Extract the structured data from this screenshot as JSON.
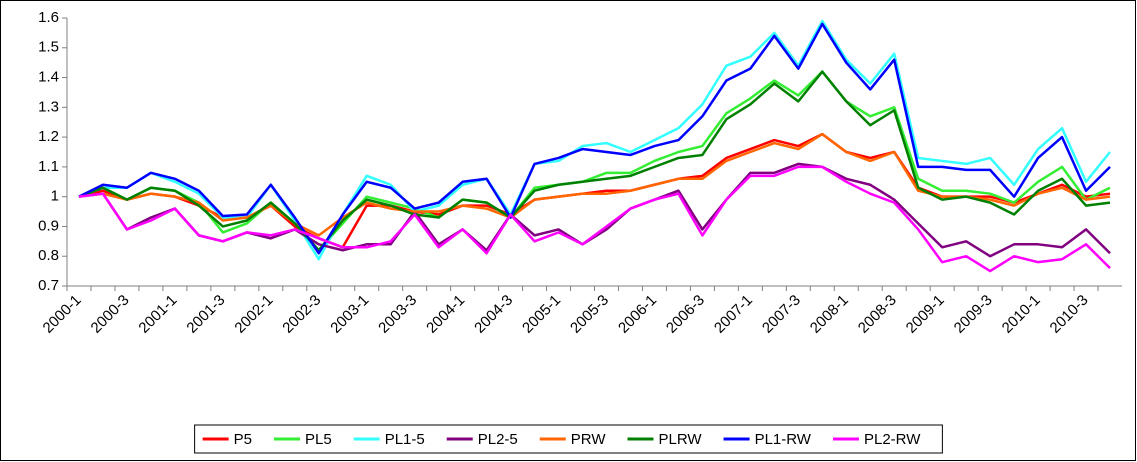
{
  "chart_data": {
    "type": "line",
    "categories": [
      "2000-1",
      null,
      "2000-3",
      null,
      "2001-1",
      null,
      "2001-3",
      null,
      "2002-1",
      null,
      "2002-3",
      null,
      "2003-1",
      null,
      "2003-3",
      null,
      "2004-1",
      null,
      "2004-3",
      null,
      "2005-1",
      null,
      "2005-3",
      null,
      "2006-1",
      null,
      "2006-3",
      null,
      "2007-1",
      null,
      "2007-3",
      null,
      "2008-1",
      null,
      "2008-3",
      null,
      "2009-1",
      null,
      "2009-3",
      null,
      "2010-1",
      null,
      "2010-3",
      null
    ],
    "ylim": [
      0.7,
      1.6
    ],
    "yticks": [
      0.7,
      0.8,
      0.9,
      1,
      1.1,
      1.2,
      1.3,
      1.4,
      1.5,
      1.6
    ],
    "legend": "bottom",
    "series": [
      {
        "name": "P5",
        "color": "#ff0000",
        "values": [
          1.0,
          1.02,
          0.99,
          1.01,
          1.0,
          0.97,
          0.93,
          0.93,
          0.97,
          0.9,
          0.86,
          0.83,
          0.97,
          0.97,
          0.95,
          0.94,
          0.97,
          0.97,
          0.94,
          0.99,
          1.0,
          1.01,
          1.02,
          1.02,
          1.04,
          1.06,
          1.07,
          1.13,
          1.16,
          1.19,
          1.17,
          1.21,
          1.15,
          1.13,
          1.15,
          1.03,
          1.0,
          1.0,
          1.0,
          0.98,
          1.01,
          1.04,
          1.0,
          1.01
        ]
      },
      {
        "name": "PL5",
        "color": "#33ee33",
        "values": [
          1.0,
          1.03,
          0.99,
          1.03,
          1.02,
          0.98,
          0.88,
          0.91,
          0.98,
          0.91,
          0.82,
          0.91,
          1.0,
          0.98,
          0.96,
          0.93,
          0.99,
          0.98,
          0.93,
          1.03,
          1.04,
          1.05,
          1.08,
          1.08,
          1.12,
          1.15,
          1.17,
          1.28,
          1.33,
          1.39,
          1.34,
          1.42,
          1.32,
          1.27,
          1.3,
          1.06,
          1.02,
          1.02,
          1.01,
          0.98,
          1.05,
          1.1,
          0.99,
          1.03
        ]
      },
      {
        "name": "PL1-5",
        "color": "#33ffff",
        "values": [
          1.0,
          1.03,
          1.03,
          1.08,
          1.05,
          1.01,
          0.93,
          0.93,
          1.04,
          0.92,
          0.79,
          0.94,
          1.07,
          1.04,
          0.95,
          0.97,
          1.04,
          1.06,
          0.94,
          1.11,
          1.12,
          1.17,
          1.18,
          1.15,
          1.19,
          1.23,
          1.31,
          1.44,
          1.47,
          1.55,
          1.44,
          1.59,
          1.46,
          1.38,
          1.48,
          1.13,
          1.12,
          1.11,
          1.13,
          1.04,
          1.16,
          1.23,
          1.05,
          1.15
        ]
      },
      {
        "name": "PL2-5",
        "color": "#800080",
        "values": [
          1.0,
          1.01,
          0.89,
          0.93,
          0.96,
          0.87,
          0.85,
          0.88,
          0.86,
          0.89,
          0.84,
          0.82,
          0.84,
          0.84,
          0.95,
          0.84,
          0.89,
          0.82,
          0.94,
          0.87,
          0.89,
          0.84,
          0.89,
          0.96,
          0.99,
          1.02,
          0.89,
          0.99,
          1.08,
          1.08,
          1.11,
          1.1,
          1.06,
          1.04,
          0.99,
          0.91,
          0.83,
          0.85,
          0.8,
          0.84,
          0.84,
          0.83,
          0.89,
          0.81
        ]
      },
      {
        "name": "PRW",
        "color": "#ff6600",
        "values": [
          1.0,
          1.01,
          0.99,
          1.01,
          1.0,
          0.98,
          0.92,
          0.93,
          0.97,
          0.91,
          0.87,
          0.93,
          0.98,
          0.96,
          0.95,
          0.95,
          0.97,
          0.96,
          0.93,
          0.99,
          1.0,
          1.01,
          1.01,
          1.02,
          1.04,
          1.06,
          1.06,
          1.12,
          1.15,
          1.18,
          1.16,
          1.21,
          1.15,
          1.12,
          1.15,
          1.02,
          1.0,
          1.0,
          0.99,
          0.97,
          1.01,
          1.03,
          0.99,
          1.0
        ]
      },
      {
        "name": "PLRW",
        "color": "#008000",
        "values": [
          1.0,
          1.03,
          0.99,
          1.03,
          1.02,
          0.97,
          0.9,
          0.92,
          0.98,
          0.91,
          0.82,
          0.92,
          0.99,
          0.97,
          0.94,
          0.93,
          0.99,
          0.98,
          0.93,
          1.02,
          1.04,
          1.05,
          1.06,
          1.07,
          1.1,
          1.13,
          1.14,
          1.26,
          1.31,
          1.38,
          1.32,
          1.42,
          1.32,
          1.24,
          1.29,
          1.03,
          0.99,
          1.0,
          0.98,
          0.94,
          1.02,
          1.06,
          0.97,
          0.98
        ]
      },
      {
        "name": "PL1-RW",
        "color": "#0000ff",
        "values": [
          1.0,
          1.04,
          1.03,
          1.08,
          1.06,
          1.02,
          0.935,
          0.94,
          1.04,
          0.93,
          0.81,
          0.94,
          1.05,
          1.03,
          0.96,
          0.98,
          1.05,
          1.06,
          0.93,
          1.11,
          1.13,
          1.16,
          1.15,
          1.14,
          1.17,
          1.19,
          1.27,
          1.39,
          1.43,
          1.54,
          1.43,
          1.58,
          1.45,
          1.36,
          1.46,
          1.1,
          1.1,
          1.09,
          1.09,
          1.0,
          1.13,
          1.2,
          1.02,
          1.1
        ]
      },
      {
        "name": "PL2-RW",
        "color": "#ff00ff",
        "values": [
          1.0,
          1.01,
          0.89,
          0.92,
          0.96,
          0.87,
          0.85,
          0.88,
          0.87,
          0.89,
          0.86,
          0.83,
          0.83,
          0.85,
          0.94,
          0.83,
          0.89,
          0.81,
          0.94,
          0.85,
          0.88,
          0.84,
          0.9,
          0.96,
          0.99,
          1.01,
          0.87,
          0.99,
          1.07,
          1.07,
          1.1,
          1.1,
          1.05,
          1.01,
          0.98,
          0.89,
          0.78,
          0.8,
          0.75,
          0.8,
          0.78,
          0.79,
          0.84,
          0.76
        ]
      }
    ]
  }
}
